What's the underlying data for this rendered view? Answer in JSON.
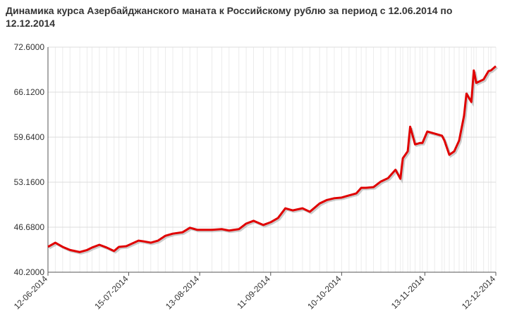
{
  "chart_data": {
    "type": "line",
    "title": "Динамика курса Азербайджанского маната к Российскому рублю за период с 12.06.2014 по 12.12.2014",
    "x": [
      "12-06-2014",
      "15-06-2014",
      "18-06-2014",
      "21-06-2014",
      "25-06-2014",
      "28-06-2014",
      "30-06-2014",
      "03-07-2014",
      "06-07-2014",
      "09-07-2014",
      "11-07-2014",
      "14-07-2014",
      "19-07-2014",
      "21-07-2014",
      "24-07-2014",
      "27-07-2014",
      "30-07-2014",
      "02-08-2014",
      "06-08-2014",
      "09-08-2014",
      "12-08-2014",
      "18-08-2014",
      "22-08-2014",
      "25-08-2014",
      "29-08-2014",
      "01-09-2014",
      "04-09-2014",
      "08-09-2014",
      "11-09-2014",
      "14-09-2014",
      "17-09-2014",
      "20-09-2014",
      "24-09-2014",
      "27-09-2014",
      "01-10-2014",
      "04-10-2014",
      "07-10-2014",
      "10-10-2014",
      "13-10-2014",
      "16-10-2014",
      "18-10-2014",
      "20-10-2014",
      "23-10-2014",
      "26-10-2014",
      "29-10-2014",
      "01-11-2014",
      "03-11-2014",
      "04-11-2014",
      "06-11-2014",
      "07-11-2014",
      "09-11-2014",
      "11-11-2014",
      "12-11-2014",
      "14-11-2014",
      "17-11-2014",
      "20-11-2014",
      "21-11-2014",
      "23-11-2014",
      "25-11-2014",
      "27-11-2014",
      "29-11-2014",
      "30-11-2014",
      "02-12-2014",
      "03-12-2014",
      "04-12-2014",
      "07-12-2014",
      "09-12-2014",
      "10-12-2014",
      "12-12-2014"
    ],
    "series": [
      {
        "color": "#e00000",
        "values": [
          43.85,
          44.45,
          43.85,
          43.4,
          43.1,
          43.4,
          43.75,
          44.15,
          43.75,
          43.25,
          43.85,
          43.95,
          44.75,
          44.65,
          44.45,
          44.75,
          45.45,
          45.75,
          45.95,
          46.6,
          46.3,
          46.3,
          46.4,
          46.2,
          46.4,
          47.2,
          47.6,
          47.0,
          47.4,
          48.0,
          49.4,
          49.1,
          49.4,
          48.9,
          50.1,
          50.6,
          50.85,
          50.95,
          51.25,
          51.55,
          52.35,
          52.35,
          52.45,
          53.25,
          53.75,
          54.95,
          53.65,
          56.6,
          57.6,
          61.15,
          58.6,
          58.8,
          58.8,
          60.45,
          60.15,
          59.85,
          59.15,
          57.1,
          57.6,
          59.15,
          62.7,
          65.9,
          64.7,
          69.25,
          67.45,
          67.95,
          69.15,
          69.25,
          69.85
        ]
      }
    ],
    "xlim": [
      "12-06-2014",
      "12-12-2014"
    ],
    "xticks": [
      "12-06-2014",
      "15-07-2014",
      "13-08-2014",
      "11-09-2014",
      "10-10-2014",
      "13-11-2014",
      "12-12-2014"
    ],
    "ylim": [
      40.2,
      72.6
    ],
    "yticks": [
      {
        "value": 40.2,
        "label": "40.2000"
      },
      {
        "value": 46.68,
        "label": "46.6800"
      },
      {
        "value": 53.16,
        "label": "53.1600"
      },
      {
        "value": 59.64,
        "label": "59.6400"
      },
      {
        "value": 66.12,
        "label": "66.1200"
      },
      {
        "value": 72.6,
        "label": "72.6000"
      }
    ],
    "grid": true
  }
}
